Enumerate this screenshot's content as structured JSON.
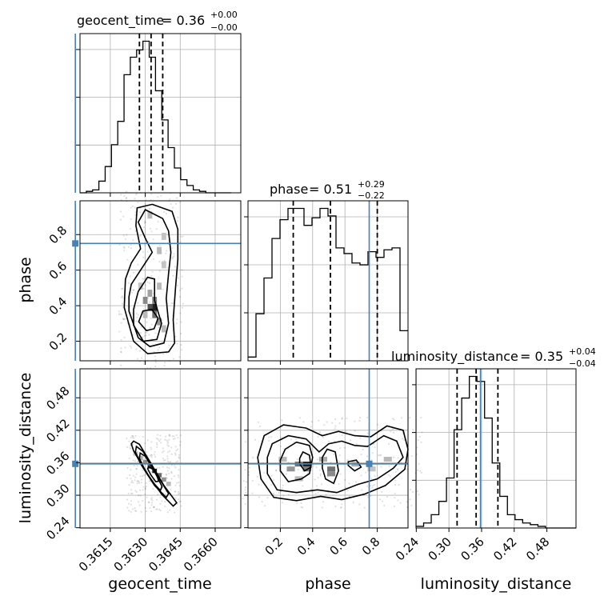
{
  "chart_data": {
    "type": "corner",
    "parameters": [
      "geocent_time",
      "phase",
      "luminosity_distance"
    ],
    "truths": {
      "geocent_time": 0.36,
      "phase": 0.75,
      "luminosity_distance": 0.358
    },
    "truth_color": "#4682b4",
    "grid": true,
    "summaries": [
      {
        "param": "geocent_time",
        "label": "geocent_time",
        "median": "0.36",
        "plus": "+0.00",
        "minus": "−0.00",
        "q16": 0.36275,
        "q50": 0.36325,
        "q84": 0.36375
      },
      {
        "param": "phase",
        "label": "phase",
        "median": "0.51",
        "plus": "+0.29",
        "minus": "−0.22",
        "q16": 0.28,
        "q50": 0.51,
        "q84": 0.8
      },
      {
        "param": "luminosity_distance",
        "label": "luminosity_distance",
        "median": "0.35",
        "plus": "+0.04",
        "minus": "−0.04",
        "q16": 0.315,
        "q50": 0.35,
        "q84": 0.39
      }
    ],
    "axes": {
      "geocent_time": {
        "range": [
          0.3602,
          0.3671
        ],
        "ticks": [
          "0.3615",
          "0.3630",
          "0.3645",
          "0.3660"
        ],
        "tick_values": [
          0.3615,
          0.363,
          0.3645,
          0.366
        ]
      },
      "phase_x": {
        "range": [
          0.0,
          0.99
        ],
        "ticks": [
          "0.2",
          "0.4",
          "0.6",
          "0.8"
        ],
        "tick_values": [
          0.2,
          0.4,
          0.6,
          0.8
        ]
      },
      "phase_y": {
        "range": [
          0.09,
          0.99
        ],
        "ticks": [
          "0.2",
          "0.4",
          "0.6",
          "0.8"
        ],
        "tick_values": [
          0.2,
          0.4,
          0.6,
          0.8
        ]
      },
      "luminosity_distance": {
        "range": [
          0.2395,
          0.5335
        ],
        "ticks": [
          "0.24",
          "0.30",
          "0.36",
          "0.42",
          "0.48"
        ],
        "tick_values": [
          0.24,
          0.3,
          0.36,
          0.42,
          0.48
        ]
      }
    },
    "histograms": {
      "geocent_time": {
        "bin_edges": [
          0.3602,
          0.36047,
          0.36074,
          0.36101,
          0.36128,
          0.36155,
          0.36182,
          0.36209,
          0.36236,
          0.36263,
          0.3629,
          0.36317,
          0.36344,
          0.36371,
          0.36398,
          0.36425,
          0.36452,
          0.36479,
          0.36506,
          0.36533,
          0.3656,
          0.36587,
          0.36614,
          0.36641,
          0.36668
        ],
        "counts": [
          0,
          1,
          2,
          8,
          18,
          33,
          49,
          81,
          93,
          98,
          104,
          93,
          70,
          50,
          31,
          17,
          9,
          5,
          2,
          1,
          0,
          0,
          0,
          0
        ]
      },
      "phase": {
        "bin_edges": [
          0.0,
          0.0495,
          0.099,
          0.1485,
          0.198,
          0.2475,
          0.297,
          0.3465,
          0.396,
          0.4455,
          0.495,
          0.5445,
          0.594,
          0.6435,
          0.693,
          0.7425,
          0.792,
          0.8415,
          0.891,
          0.9405,
          0.99
        ],
        "counts": [
          2,
          25,
          44,
          65,
          75,
          81,
          81,
          72,
          76,
          81,
          77,
          60,
          57,
          52,
          51,
          58,
          55,
          59,
          60,
          16
        ]
      },
      "luminosity_distance": {
        "bin_edges": [
          0.2395,
          0.2535,
          0.2675,
          0.2815,
          0.2955,
          0.3095,
          0.3235,
          0.3375,
          0.3515,
          0.3655,
          0.3795,
          0.3935,
          0.4075,
          0.4215,
          0.4355,
          0.4495,
          0.4635,
          0.4775,
          0.4915,
          0.5055,
          0.5195,
          0.5335
        ],
        "counts": [
          1,
          3,
          8,
          16,
          30,
          59,
          78,
          91,
          88,
          66,
          39,
          19,
          8,
          5,
          3,
          2,
          1,
          0,
          0,
          0,
          0
        ]
      }
    },
    "contours": {
      "phase_vs_geocent_time": [
        [
          [
            0.36272,
            0.31
          ],
          [
            0.36305,
            0.26
          ],
          [
            0.36338,
            0.27
          ],
          [
            0.36355,
            0.33
          ],
          [
            0.36328,
            0.38
          ],
          [
            0.3629,
            0.37
          ],
          [
            0.36272,
            0.31
          ]
        ],
        [
          [
            0.3625,
            0.29
          ],
          [
            0.36292,
            0.2
          ],
          [
            0.3635,
            0.21
          ],
          [
            0.3637,
            0.3
          ],
          [
            0.3634,
            0.43
          ],
          [
            0.3634,
            0.55
          ],
          [
            0.3631,
            0.56
          ],
          [
            0.3627,
            0.48
          ],
          [
            0.3625,
            0.38
          ],
          [
            0.3625,
            0.29
          ]
        ],
        [
          [
            0.3623,
            0.37
          ],
          [
            0.3627,
            0.22
          ],
          [
            0.3632,
            0.17
          ],
          [
            0.3638,
            0.19
          ],
          [
            0.364,
            0.3
          ],
          [
            0.3639,
            0.44
          ],
          [
            0.364,
            0.58
          ],
          [
            0.3641,
            0.7
          ],
          [
            0.364,
            0.82
          ],
          [
            0.36375,
            0.89
          ],
          [
            0.363,
            0.94
          ],
          [
            0.3627,
            0.87
          ],
          [
            0.363,
            0.78
          ],
          [
            0.3633,
            0.7
          ],
          [
            0.3628,
            0.6
          ],
          [
            0.3624,
            0.52
          ],
          [
            0.3623,
            0.45
          ],
          [
            0.3623,
            0.37
          ]
        ],
        [
          [
            0.3621,
            0.39
          ],
          [
            0.3625,
            0.2
          ],
          [
            0.3631,
            0.13
          ],
          [
            0.364,
            0.14
          ],
          [
            0.36426,
            0.19
          ],
          [
            0.3642,
            0.32
          ],
          [
            0.3643,
            0.5
          ],
          [
            0.3644,
            0.66
          ],
          [
            0.3644,
            0.83
          ],
          [
            0.36415,
            0.93
          ],
          [
            0.3633,
            0.97
          ],
          [
            0.36265,
            0.95
          ],
          [
            0.3626,
            0.85
          ],
          [
            0.3628,
            0.72
          ],
          [
            0.3624,
            0.64
          ],
          [
            0.36215,
            0.55
          ],
          [
            0.3621,
            0.39
          ]
        ]
      ],
      "luminosity_distance_vs_geocent_time": [
        [
          [
            0.36315,
            0.353
          ],
          [
            0.36335,
            0.347
          ],
          [
            0.36352,
            0.334
          ],
          [
            0.36357,
            0.326
          ],
          [
            0.36345,
            0.325
          ],
          [
            0.36325,
            0.337
          ],
          [
            0.3631,
            0.349
          ],
          [
            0.36315,
            0.353
          ]
        ],
        [
          [
            0.36278,
            0.378
          ],
          [
            0.363,
            0.372
          ],
          [
            0.3634,
            0.344
          ],
          [
            0.36372,
            0.316
          ],
          [
            0.36365,
            0.309
          ],
          [
            0.3633,
            0.325
          ],
          [
            0.36295,
            0.35
          ],
          [
            0.36275,
            0.368
          ],
          [
            0.36278,
            0.378
          ]
        ],
        [
          [
            0.36262,
            0.39
          ],
          [
            0.3629,
            0.381
          ],
          [
            0.3635,
            0.338
          ],
          [
            0.364,
            0.303
          ],
          [
            0.3639,
            0.296
          ],
          [
            0.3634,
            0.318
          ],
          [
            0.3628,
            0.358
          ],
          [
            0.36258,
            0.38
          ],
          [
            0.36262,
            0.39
          ]
        ],
        [
          [
            0.3625,
            0.4
          ],
          [
            0.36275,
            0.394
          ],
          [
            0.3632,
            0.362
          ],
          [
            0.3638,
            0.318
          ],
          [
            0.36435,
            0.286
          ],
          [
            0.3642,
            0.28
          ],
          [
            0.3637,
            0.302
          ],
          [
            0.363,
            0.345
          ],
          [
            0.3625,
            0.382
          ],
          [
            0.3624,
            0.395
          ],
          [
            0.3625,
            0.4
          ]
        ]
      ],
      "luminosity_distance_vs_phase": [
        [
          [
            0.32,
            0.358
          ],
          [
            0.35,
            0.345
          ],
          [
            0.39,
            0.352
          ],
          [
            0.38,
            0.374
          ],
          [
            0.34,
            0.38
          ],
          [
            0.32,
            0.368
          ],
          [
            0.32,
            0.358
          ]
        ],
        [
          [
            0.2,
            0.345
          ],
          [
            0.25,
            0.325
          ],
          [
            0.33,
            0.33
          ],
          [
            0.38,
            0.34
          ],
          [
            0.4,
            0.37
          ],
          [
            0.38,
            0.392
          ],
          [
            0.3,
            0.398
          ],
          [
            0.23,
            0.385
          ],
          [
            0.2,
            0.365
          ],
          [
            0.2,
            0.345
          ]
        ],
        [
          [
            0.46,
            0.35
          ],
          [
            0.48,
            0.33
          ],
          [
            0.53,
            0.322
          ],
          [
            0.56,
            0.345
          ],
          [
            0.54,
            0.38
          ],
          [
            0.49,
            0.385
          ],
          [
            0.46,
            0.37
          ],
          [
            0.46,
            0.35
          ]
        ],
        [
          [
            0.62,
            0.355
          ],
          [
            0.66,
            0.345
          ],
          [
            0.7,
            0.352
          ],
          [
            0.67,
            0.365
          ],
          [
            0.62,
            0.362
          ],
          [
            0.62,
            0.355
          ]
        ],
        [
          [
            0.12,
            0.34
          ],
          [
            0.18,
            0.31
          ],
          [
            0.3,
            0.305
          ],
          [
            0.43,
            0.31
          ],
          [
            0.55,
            0.305
          ],
          [
            0.68,
            0.32
          ],
          [
            0.8,
            0.33
          ],
          [
            0.9,
            0.35
          ],
          [
            0.96,
            0.37
          ],
          [
            0.92,
            0.4
          ],
          [
            0.84,
            0.41
          ],
          [
            0.74,
            0.39
          ],
          [
            0.66,
            0.392
          ],
          [
            0.58,
            0.4
          ],
          [
            0.5,
            0.395
          ],
          [
            0.44,
            0.38
          ],
          [
            0.36,
            0.404
          ],
          [
            0.25,
            0.41
          ],
          [
            0.15,
            0.395
          ],
          [
            0.12,
            0.37
          ],
          [
            0.12,
            0.34
          ]
        ],
        [
          [
            0.08,
            0.33
          ],
          [
            0.16,
            0.296
          ],
          [
            0.3,
            0.29
          ],
          [
            0.45,
            0.298
          ],
          [
            0.58,
            0.292
          ],
          [
            0.72,
            0.302
          ],
          [
            0.85,
            0.318
          ],
          [
            0.97,
            0.348
          ],
          [
            0.99,
            0.385
          ],
          [
            0.96,
            0.42
          ],
          [
            0.86,
            0.428
          ],
          [
            0.76,
            0.408
          ],
          [
            0.66,
            0.41
          ],
          [
            0.56,
            0.418
          ],
          [
            0.46,
            0.41
          ],
          [
            0.36,
            0.424
          ],
          [
            0.22,
            0.43
          ],
          [
            0.1,
            0.41
          ],
          [
            0.06,
            0.37
          ],
          [
            0.08,
            0.33
          ]
        ]
      ]
    },
    "density_cells": {
      "phase_vs_geocent_time": [
        {
          "x": 0.3633,
          "y": 0.37,
          "w": 0.0002,
          "h": 0.04,
          "shade": 0.95
        },
        {
          "x": 0.3631,
          "y": 0.37,
          "w": 0.0002,
          "h": 0.04,
          "shade": 0.75
        },
        {
          "x": 0.3633,
          "y": 0.33,
          "w": 0.0002,
          "h": 0.04,
          "shade": 0.6
        },
        {
          "x": 0.3629,
          "y": 0.41,
          "w": 0.0002,
          "h": 0.04,
          "shade": 0.5
        },
        {
          "x": 0.3635,
          "y": 0.29,
          "w": 0.0002,
          "h": 0.04,
          "shade": 0.45
        },
        {
          "x": 0.3631,
          "y": 0.45,
          "w": 0.0002,
          "h": 0.04,
          "shade": 0.4
        },
        {
          "x": 0.3633,
          "y": 0.41,
          "w": 0.0002,
          "h": 0.04,
          "shade": 0.55
        },
        {
          "x": 0.3629,
          "y": 0.33,
          "w": 0.0002,
          "h": 0.04,
          "shade": 0.3
        },
        {
          "x": 0.3635,
          "y": 0.49,
          "w": 0.0002,
          "h": 0.04,
          "shade": 0.3
        },
        {
          "x": 0.3637,
          "y": 0.61,
          "w": 0.0002,
          "h": 0.04,
          "shade": 0.25
        },
        {
          "x": 0.3635,
          "y": 0.69,
          "w": 0.0002,
          "h": 0.04,
          "shade": 0.3
        },
        {
          "x": 0.3637,
          "y": 0.77,
          "w": 0.0002,
          "h": 0.04,
          "shade": 0.25
        },
        {
          "x": 0.3631,
          "y": 0.89,
          "w": 0.0002,
          "h": 0.04,
          "shade": 0.3
        },
        {
          "x": 0.3627,
          "y": 0.49,
          "w": 0.0002,
          "h": 0.04,
          "shade": 0.25
        },
        {
          "x": 0.3637,
          "y": 0.25,
          "w": 0.0002,
          "h": 0.04,
          "shade": 0.3
        }
      ],
      "luminosity_distance_vs_geocent_time": [
        {
          "x": 0.3633,
          "y": 0.341,
          "w": 0.0002,
          "h": 0.008,
          "shade": 0.95
        },
        {
          "x": 0.3631,
          "y": 0.349,
          "w": 0.0002,
          "h": 0.008,
          "shade": 0.7
        },
        {
          "x": 0.3635,
          "y": 0.333,
          "w": 0.0002,
          "h": 0.008,
          "shade": 0.65
        },
        {
          "x": 0.3629,
          "y": 0.357,
          "w": 0.0002,
          "h": 0.008,
          "shade": 0.5
        },
        {
          "x": 0.3637,
          "y": 0.325,
          "w": 0.0002,
          "h": 0.008,
          "shade": 0.45
        },
        {
          "x": 0.3627,
          "y": 0.365,
          "w": 0.0002,
          "h": 0.008,
          "shade": 0.35
        },
        {
          "x": 0.3639,
          "y": 0.317,
          "w": 0.0002,
          "h": 0.008,
          "shade": 0.3
        },
        {
          "x": 0.3625,
          "y": 0.373,
          "w": 0.0002,
          "h": 0.008,
          "shade": 0.2
        }
      ],
      "luminosity_distance_vs_phase": [
        {
          "x": 0.34,
          "y": 0.353,
          "w": 0.05,
          "h": 0.009,
          "shade": 0.95
        },
        {
          "x": 0.29,
          "y": 0.353,
          "w": 0.05,
          "h": 0.009,
          "shade": 0.6
        },
        {
          "x": 0.34,
          "y": 0.344,
          "w": 0.05,
          "h": 0.009,
          "shade": 0.55
        },
        {
          "x": 0.24,
          "y": 0.344,
          "w": 0.05,
          "h": 0.009,
          "shade": 0.45
        },
        {
          "x": 0.49,
          "y": 0.344,
          "w": 0.05,
          "h": 0.009,
          "shade": 0.6
        },
        {
          "x": 0.49,
          "y": 0.335,
          "w": 0.05,
          "h": 0.009,
          "shade": 0.5
        },
        {
          "x": 0.44,
          "y": 0.362,
          "w": 0.05,
          "h": 0.009,
          "shade": 0.35
        },
        {
          "x": 0.64,
          "y": 0.353,
          "w": 0.05,
          "h": 0.009,
          "shade": 0.35
        },
        {
          "x": 0.19,
          "y": 0.362,
          "w": 0.05,
          "h": 0.009,
          "shade": 0.3
        },
        {
          "x": 0.84,
          "y": 0.362,
          "w": 0.05,
          "h": 0.009,
          "shade": 0.3
        },
        {
          "x": 0.74,
          "y": 0.344,
          "w": 0.05,
          "h": 0.009,
          "shade": 0.25
        },
        {
          "x": 0.29,
          "y": 0.326,
          "w": 0.05,
          "h": 0.009,
          "shade": 0.3
        }
      ]
    }
  }
}
